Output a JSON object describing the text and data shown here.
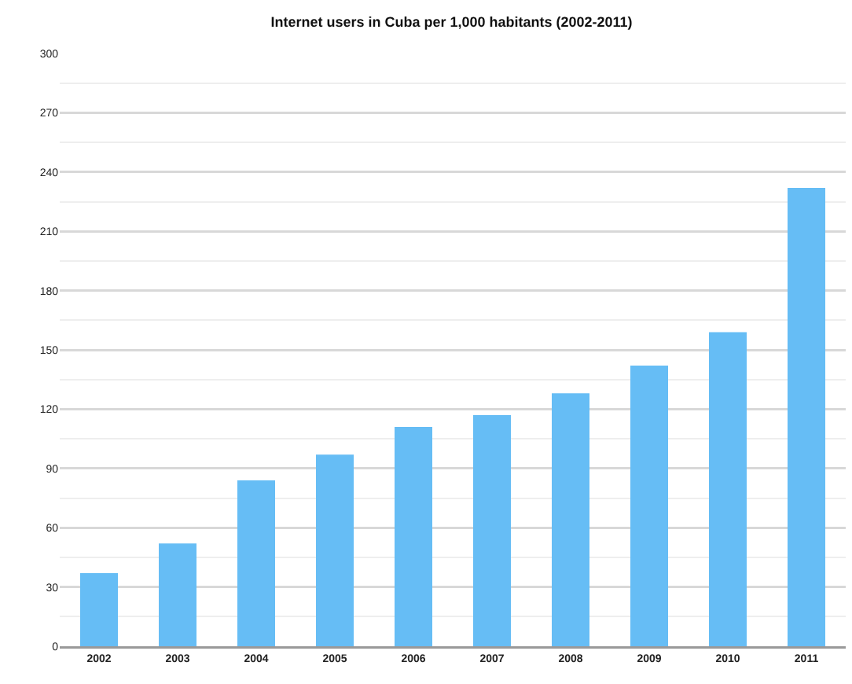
{
  "chart_data": {
    "type": "bar",
    "title": "Internet users in Cuba per 1,000 habitants (2002-2011)",
    "categories": [
      "2002",
      "2003",
      "2004",
      "2005",
      "2006",
      "2007",
      "2008",
      "2009",
      "2010",
      "2011"
    ],
    "values": [
      37,
      52,
      84,
      97,
      111,
      117,
      128,
      142,
      159,
      232
    ],
    "color": "#66bdf5",
    "ylim": [
      0,
      300
    ],
    "yticks": [
      0,
      30,
      60,
      90,
      120,
      150,
      180,
      210,
      240,
      270,
      300
    ],
    "grid": "y"
  }
}
